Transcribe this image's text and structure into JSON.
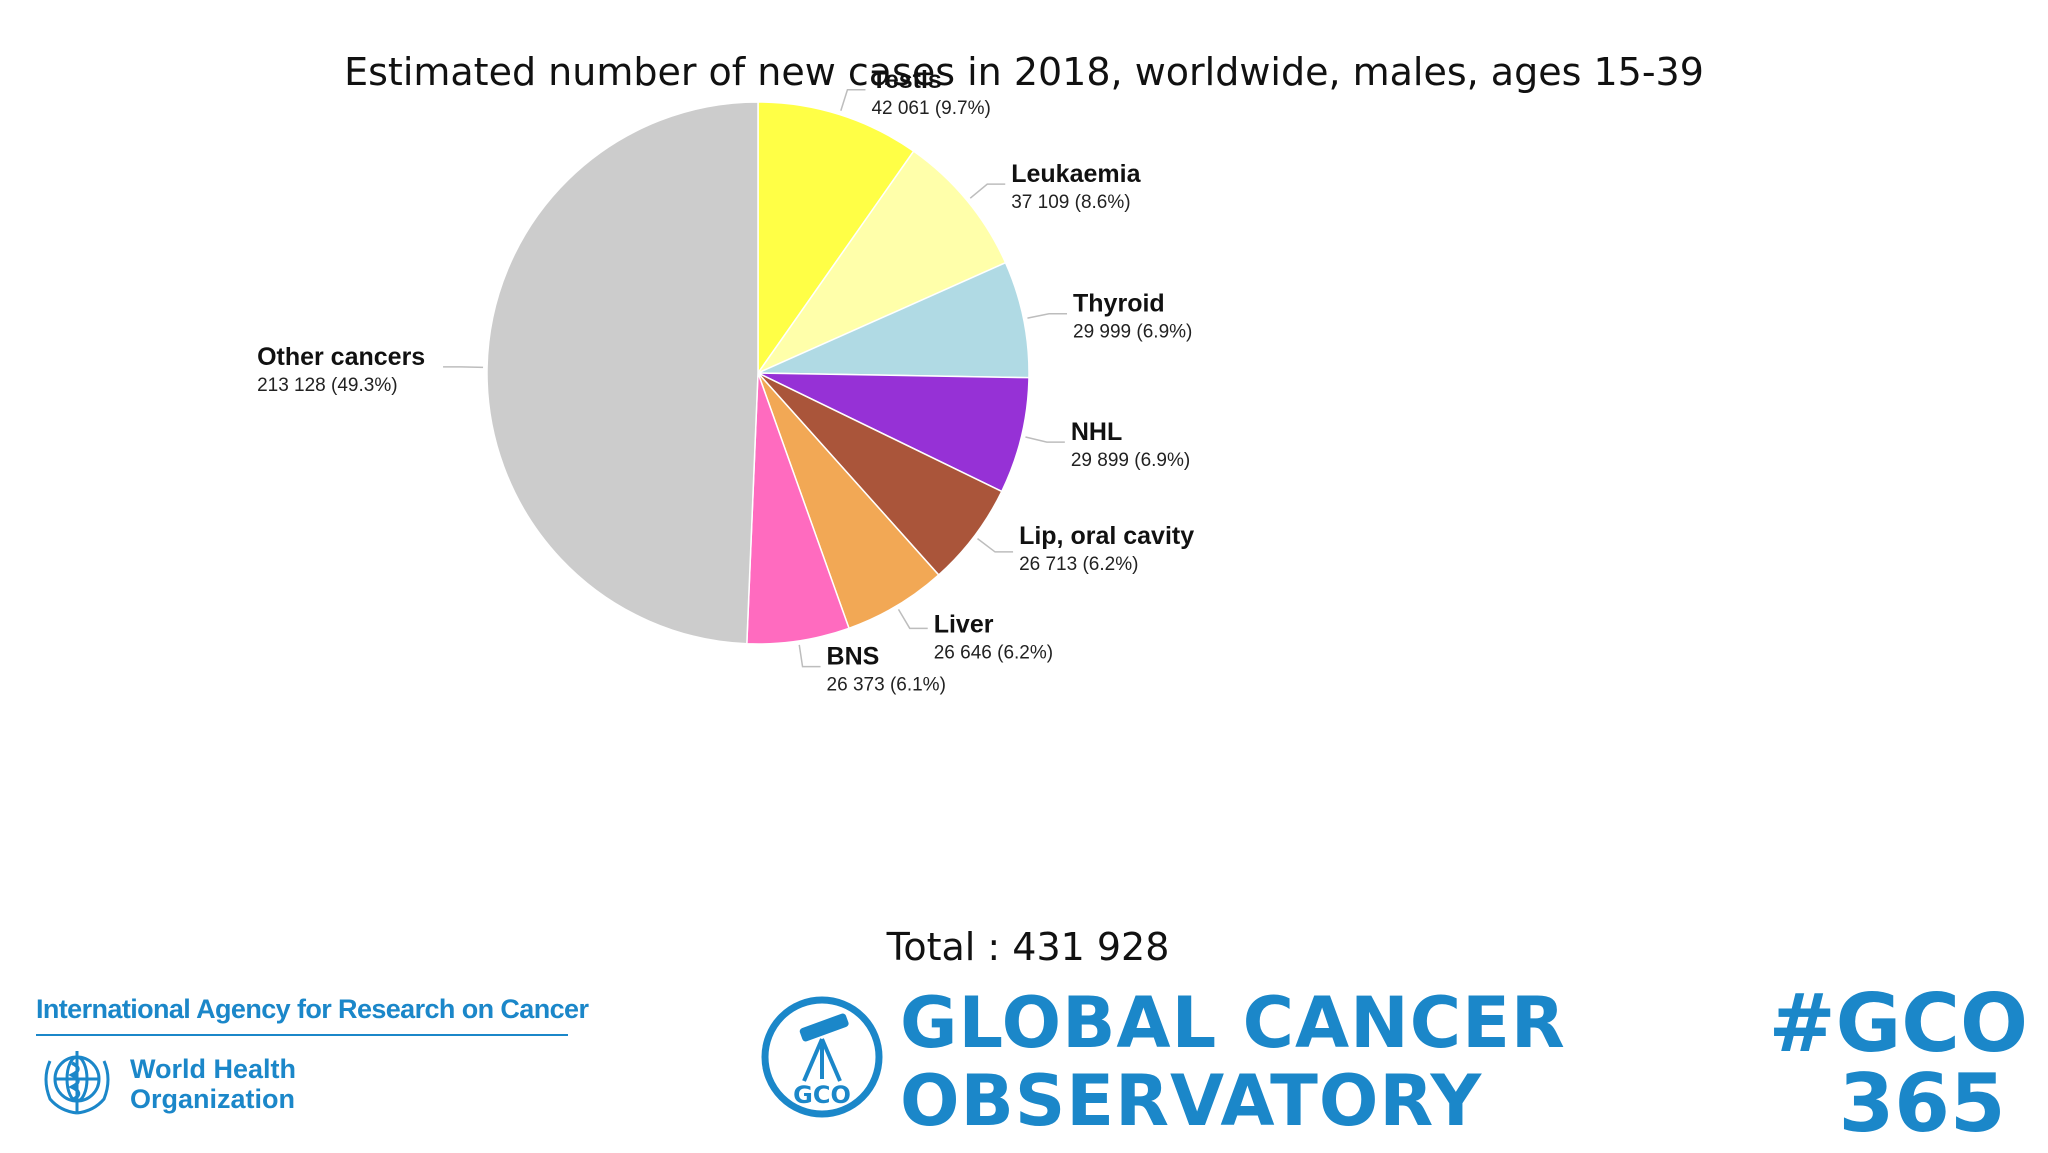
{
  "chart_data": {
    "type": "pie",
    "title": "Estimated number of new cases in 2018, worldwide, males, ages 15-39",
    "total_label": "Total : 431 928",
    "total": 431928,
    "start_angle_deg": 0,
    "direction": "clockwise",
    "slices": [
      {
        "name": "Testis",
        "value": 42061,
        "percent": 9.7,
        "value_label": "42 061 (9.7%)",
        "color": "#ffff46"
      },
      {
        "name": "Leukaemia",
        "value": 37109,
        "percent": 8.6,
        "value_label": "37 109 (8.6%)",
        "color": "#ffffaa"
      },
      {
        "name": "Thyroid",
        "value": 29999,
        "percent": 6.9,
        "value_label": "29 999 (6.9%)",
        "color": "#b0dae4"
      },
      {
        "name": "NHL",
        "value": 29899,
        "percent": 6.9,
        "value_label": "29 899 (6.9%)",
        "color": "#9631d6"
      },
      {
        "name": "Lip, oral cavity",
        "value": 26713,
        "percent": 6.2,
        "value_label": "26 713 (6.2%)",
        "color": "#aa553a"
      },
      {
        "name": "Liver",
        "value": 26646,
        "percent": 6.2,
        "value_label": "26 646 (6.2%)",
        "color": "#f2a855"
      },
      {
        "name": "BNS",
        "value": 26373,
        "percent": 6.1,
        "value_label": "26 373 (6.1%)",
        "color": "#ff6bbf"
      },
      {
        "name": "Other cancers",
        "value": 213128,
        "percent": 49.3,
        "value_label": "213 128 (49.3%)",
        "color": "#cccccc"
      }
    ]
  },
  "footer": {
    "iarc": "International Agency for Research on Cancer",
    "who_line1": "World Health",
    "who_line2": "Organization",
    "gco_badge": "GCO",
    "gco_line1": "GLOBAL CANCER",
    "gco_line2": "OBSERVATORY",
    "hashtag_line1": "#GCO",
    "hashtag_line2": "365"
  },
  "colors": {
    "brand_blue": "#1b87c9"
  }
}
